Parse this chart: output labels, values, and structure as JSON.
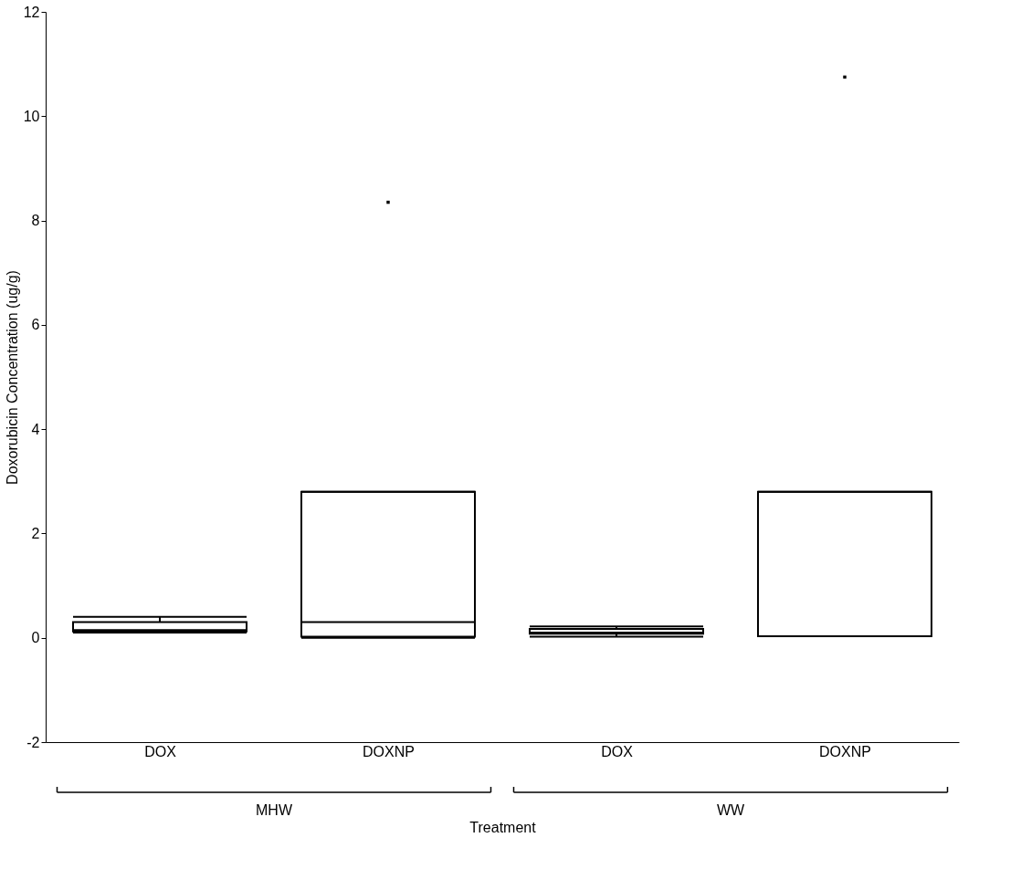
{
  "chart_data": {
    "type": "box",
    "xlabel": "Treatment",
    "ylabel": "Doxorubicin Concentration (ug/g)",
    "categories": [
      "DOX",
      "DOXNP",
      "DOX",
      "DOXNP"
    ],
    "boxes": [
      {
        "low": 0.1,
        "q1": 0.12,
        "median": 0.15,
        "q3": 0.3,
        "high": 0.4
      },
      {
        "low": 0.0,
        "q1": 0.02,
        "median": 0.3,
        "q3": 2.8,
        "high": 2.8,
        "outliers": [
          8.35
        ]
      },
      {
        "low": 0.02,
        "q1": 0.08,
        "median": 0.1,
        "q3": 0.17,
        "high": 0.22
      },
      {
        "low": 0.03,
        "q1": 0.03,
        "median": 0.03,
        "q3": 2.8,
        "high": 2.8,
        "outliers": [
          10.75
        ]
      }
    ],
    "annotations": [
      "MHW",
      "WW"
    ],
    "ylim": [
      -2,
      12
    ],
    "yticks": [
      -2,
      0,
      2,
      4,
      6,
      8,
      10,
      12
    ],
    "grid": false
  }
}
